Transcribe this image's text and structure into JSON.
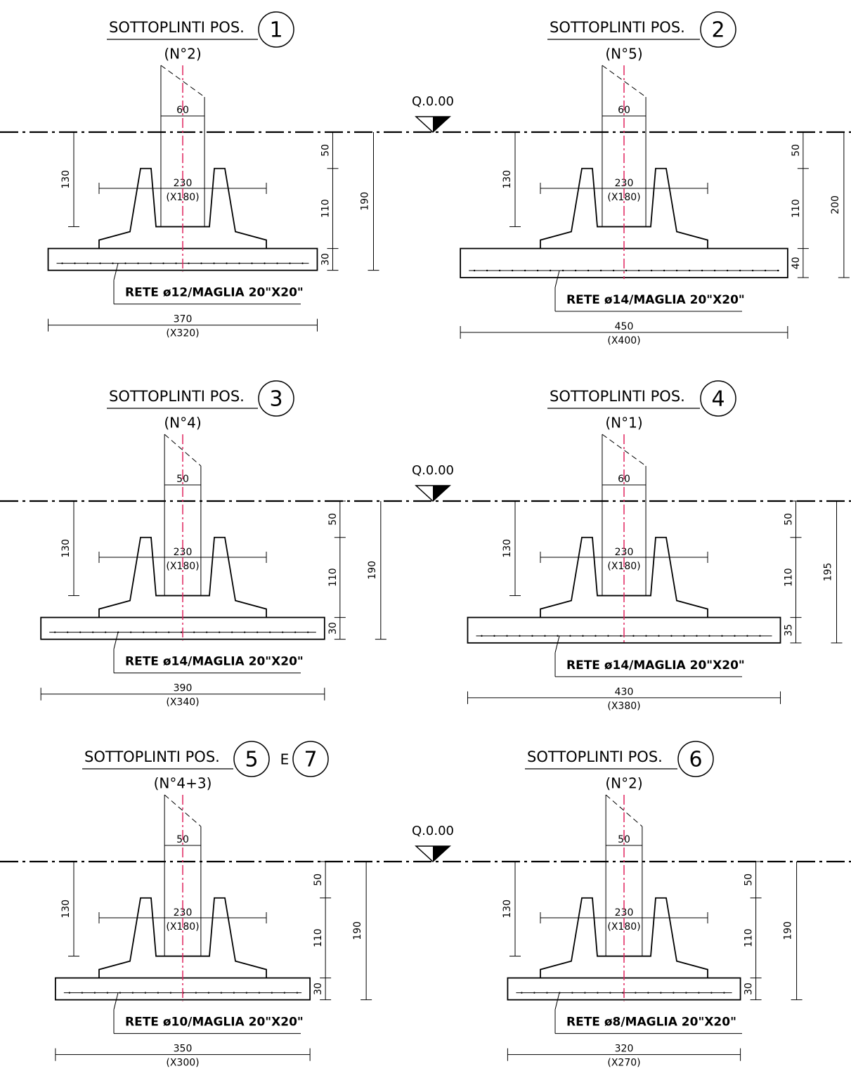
{
  "level_marks": [
    "Q.0.00",
    "Q.0.00",
    "Q.0.00"
  ],
  "panels": [
    {
      "title": "SOTTOPLINTI POS.",
      "positions": [
        "1"
      ],
      "count": "(N°2)",
      "column": 60,
      "plinth": 230,
      "plinth_inner": "(X180)",
      "socket_depth": 130,
      "collar": 50,
      "plinth_height": 110,
      "slab": 30,
      "total": 190,
      "rebar": "RETE ø12/MAGLIA 20\"X20\"",
      "base": 370,
      "base_inner": "(X320)"
    },
    {
      "title": "SOTTOPLINTI POS.",
      "positions": [
        "2"
      ],
      "count": "(N°5)",
      "column": 60,
      "plinth": 230,
      "plinth_inner": "(X180)",
      "socket_depth": 130,
      "collar": 50,
      "plinth_height": 110,
      "slab": 40,
      "total": 200,
      "rebar": "RETE ø14/MAGLIA 20\"X20\"",
      "base": 450,
      "base_inner": "(X400)"
    },
    {
      "title": "SOTTOPLINTI POS.",
      "positions": [
        "3"
      ],
      "count": "(N°4)",
      "column": 50,
      "plinth": 230,
      "plinth_inner": "(X180)",
      "socket_depth": 130,
      "collar": 50,
      "plinth_height": 110,
      "slab": 30,
      "total": 190,
      "rebar": "RETE ø14/MAGLIA 20\"X20\"",
      "base": 390,
      "base_inner": "(X340)"
    },
    {
      "title": "SOTTOPLINTI POS.",
      "positions": [
        "4"
      ],
      "count": "(N°1)",
      "column": 60,
      "plinth": 230,
      "plinth_inner": "(X180)",
      "socket_depth": 130,
      "collar": 50,
      "plinth_height": 110,
      "slab": 35,
      "total": 195,
      "rebar": "RETE ø14/MAGLIA 20\"X20\"",
      "base": 430,
      "base_inner": "(X380)"
    },
    {
      "title": "SOTTOPLINTI POS.",
      "positions": [
        "5",
        "7"
      ],
      "joiner": "E",
      "count": "(N°4+3)",
      "column": 50,
      "plinth": 230,
      "plinth_inner": "(X180)",
      "socket_depth": 130,
      "collar": 50,
      "plinth_height": 110,
      "slab": 30,
      "total": 190,
      "rebar": "RETE ø10/MAGLIA 20\"X20\"",
      "base": 350,
      "base_inner": "(X300)"
    },
    {
      "title": "SOTTOPLINTI POS.",
      "positions": [
        "6"
      ],
      "count": "(N°2)",
      "column": 50,
      "plinth": 230,
      "plinth_inner": "(X180)",
      "socket_depth": 130,
      "collar": 50,
      "plinth_height": 110,
      "slab": 30,
      "total": 190,
      "rebar": "RETE ø8/MAGLIA 20\"X20\"",
      "base": 320,
      "base_inner": "(X270)"
    }
  ]
}
